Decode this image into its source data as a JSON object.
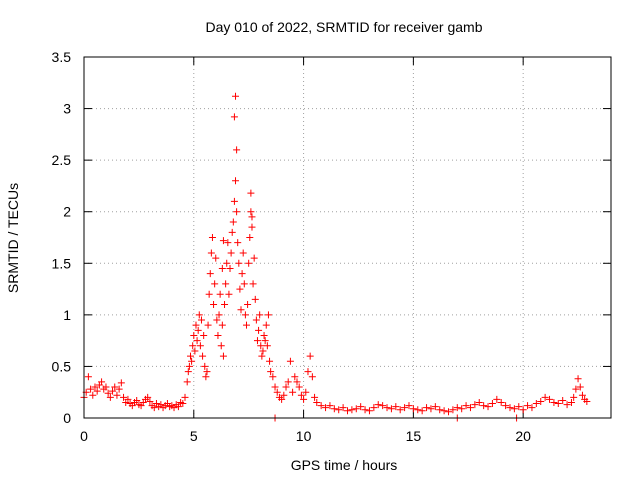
{
  "chart_data": {
    "type": "scatter",
    "title": "Day 010 of 2022, SRMTID for receiver gamb",
    "xlabel": "GPS time / hours",
    "ylabel": "SRMTID / TECUs",
    "xlim": [
      0,
      24
    ],
    "ylim": [
      0,
      3.5
    ],
    "xticks": [
      0,
      5,
      10,
      15,
      20
    ],
    "yticks": [
      0,
      0.5,
      1,
      1.5,
      2,
      2.5,
      3,
      3.5
    ],
    "xtick_labels": [
      "0",
      "5",
      "10",
      "15",
      "20"
    ],
    "ytick_labels": [
      "0",
      "0.5",
      "1",
      "1.5",
      "2",
      "2.5",
      "3",
      "3.5"
    ],
    "grid": true,
    "marker": "+",
    "color": "#ff0000",
    "series": [
      {
        "name": "SRMTID",
        "x": [
          0.0,
          0.1,
          0.2,
          0.3,
          0.4,
          0.5,
          0.6,
          0.7,
          0.8,
          0.9,
          1.0,
          1.1,
          1.2,
          1.3,
          1.4,
          1.5,
          1.6,
          1.7,
          1.8,
          1.9,
          2.0,
          2.1,
          2.2,
          2.3,
          2.4,
          2.5,
          2.6,
          2.7,
          2.8,
          2.9,
          3.0,
          3.1,
          3.2,
          3.3,
          3.4,
          3.5,
          3.6,
          3.7,
          3.8,
          3.9,
          4.0,
          4.1,
          4.2,
          4.3,
          4.4,
          4.5,
          4.6,
          4.7,
          4.75,
          4.8,
          4.85,
          4.9,
          4.95,
          5.0,
          5.05,
          5.1,
          5.15,
          5.2,
          5.25,
          5.3,
          5.35,
          5.4,
          5.45,
          5.5,
          5.55,
          5.6,
          5.65,
          5.7,
          5.75,
          5.8,
          5.85,
          5.9,
          5.95,
          6.0,
          6.05,
          6.1,
          6.15,
          6.2,
          6.25,
          6.3,
          6.35,
          6.4,
          6.45,
          6.5,
          6.55,
          6.6,
          6.65,
          6.7,
          6.75,
          6.8,
          6.85,
          6.9,
          6.95,
          7.0,
          7.05,
          7.1,
          7.15,
          7.2,
          7.25,
          7.3,
          7.35,
          7.4,
          7.45,
          7.5,
          7.55,
          7.6,
          7.65,
          7.7,
          7.75,
          7.8,
          7.85,
          7.9,
          7.95,
          8.0,
          8.05,
          8.1,
          8.15,
          8.2,
          8.25,
          8.3,
          8.35,
          8.4,
          8.45,
          8.5,
          8.6,
          8.7,
          8.8,
          8.9,
          9.0,
          9.1,
          9.2,
          9.3,
          9.4,
          9.5,
          9.6,
          9.7,
          9.8,
          9.9,
          10.0,
          10.1,
          10.2,
          10.3,
          10.4,
          10.5,
          10.6,
          10.8,
          11.0,
          11.2,
          11.4,
          11.6,
          11.8,
          12.0,
          12.2,
          12.4,
          12.6,
          12.8,
          13.0,
          13.2,
          13.4,
          13.6,
          13.8,
          14.0,
          14.2,
          14.4,
          14.6,
          14.8,
          15.0,
          15.2,
          15.4,
          15.6,
          15.8,
          16.0,
          16.2,
          16.4,
          16.6,
          16.8,
          17.0,
          17.2,
          17.4,
          17.6,
          17.8,
          18.0,
          18.2,
          18.4,
          18.6,
          18.8,
          19.0,
          19.2,
          19.4,
          19.6,
          19.8,
          20.0,
          20.2,
          20.4,
          20.6,
          20.8,
          21.0,
          21.2,
          21.4,
          21.6,
          21.8,
          22.0,
          22.2,
          22.3,
          22.4,
          22.5,
          22.6,
          22.7,
          22.8,
          22.9,
          6.85,
          6.9,
          6.95,
          7.6,
          7.65,
          6.3,
          6.35,
          8.7,
          17.0,
          19.7
        ],
        "y": [
          0.2,
          0.25,
          0.4,
          0.28,
          0.22,
          0.3,
          0.26,
          0.32,
          0.35,
          0.28,
          0.3,
          0.24,
          0.2,
          0.26,
          0.3,
          0.22,
          0.28,
          0.34,
          0.2,
          0.15,
          0.18,
          0.14,
          0.12,
          0.15,
          0.17,
          0.13,
          0.12,
          0.15,
          0.18,
          0.2,
          0.16,
          0.12,
          0.1,
          0.14,
          0.11,
          0.13,
          0.1,
          0.12,
          0.14,
          0.11,
          0.12,
          0.1,
          0.13,
          0.11,
          0.15,
          0.14,
          0.2,
          0.35,
          0.45,
          0.5,
          0.6,
          0.55,
          0.7,
          0.8,
          0.65,
          0.9,
          0.75,
          0.85,
          1.0,
          0.7,
          0.95,
          0.6,
          0.8,
          0.5,
          0.4,
          0.45,
          0.9,
          1.2,
          1.4,
          1.6,
          1.75,
          1.1,
          1.3,
          1.55,
          0.95,
          0.8,
          1.0,
          1.2,
          0.7,
          0.9,
          0.6,
          1.1,
          1.3,
          1.5,
          1.7,
          1.2,
          1.45,
          1.6,
          1.8,
          1.9,
          2.1,
          2.3,
          2.0,
          1.7,
          1.5,
          1.25,
          1.05,
          1.4,
          1.6,
          1.3,
          1.0,
          0.9,
          1.1,
          1.5,
          1.75,
          2.0,
          1.85,
          1.3,
          1.55,
          1.15,
          0.95,
          0.75,
          0.85,
          1.0,
          0.7,
          0.6,
          0.65,
          0.8,
          0.75,
          0.9,
          0.7,
          1.0,
          0.55,
          0.45,
          0.4,
          0.3,
          0.25,
          0.2,
          0.18,
          0.22,
          0.3,
          0.35,
          0.55,
          0.25,
          0.4,
          0.35,
          0.3,
          0.22,
          0.18,
          0.25,
          0.45,
          0.6,
          0.4,
          0.2,
          0.15,
          0.12,
          0.1,
          0.12,
          0.09,
          0.08,
          0.1,
          0.07,
          0.08,
          0.09,
          0.11,
          0.08,
          0.07,
          0.1,
          0.13,
          0.12,
          0.1,
          0.09,
          0.11,
          0.08,
          0.1,
          0.12,
          0.09,
          0.08,
          0.07,
          0.1,
          0.09,
          0.11,
          0.08,
          0.07,
          0.06,
          0.08,
          0.1,
          0.09,
          0.12,
          0.1,
          0.13,
          0.15,
          0.12,
          0.11,
          0.14,
          0.18,
          0.15,
          0.12,
          0.1,
          0.09,
          0.11,
          0.08,
          0.12,
          0.1,
          0.14,
          0.16,
          0.2,
          0.18,
          0.15,
          0.14,
          0.17,
          0.13,
          0.15,
          0.2,
          0.28,
          0.38,
          0.3,
          0.22,
          0.18,
          0.16,
          2.92,
          3.12,
          2.6,
          2.18,
          1.95,
          1.45,
          1.72,
          0.0,
          0.0,
          0.0
        ]
      }
    ]
  }
}
